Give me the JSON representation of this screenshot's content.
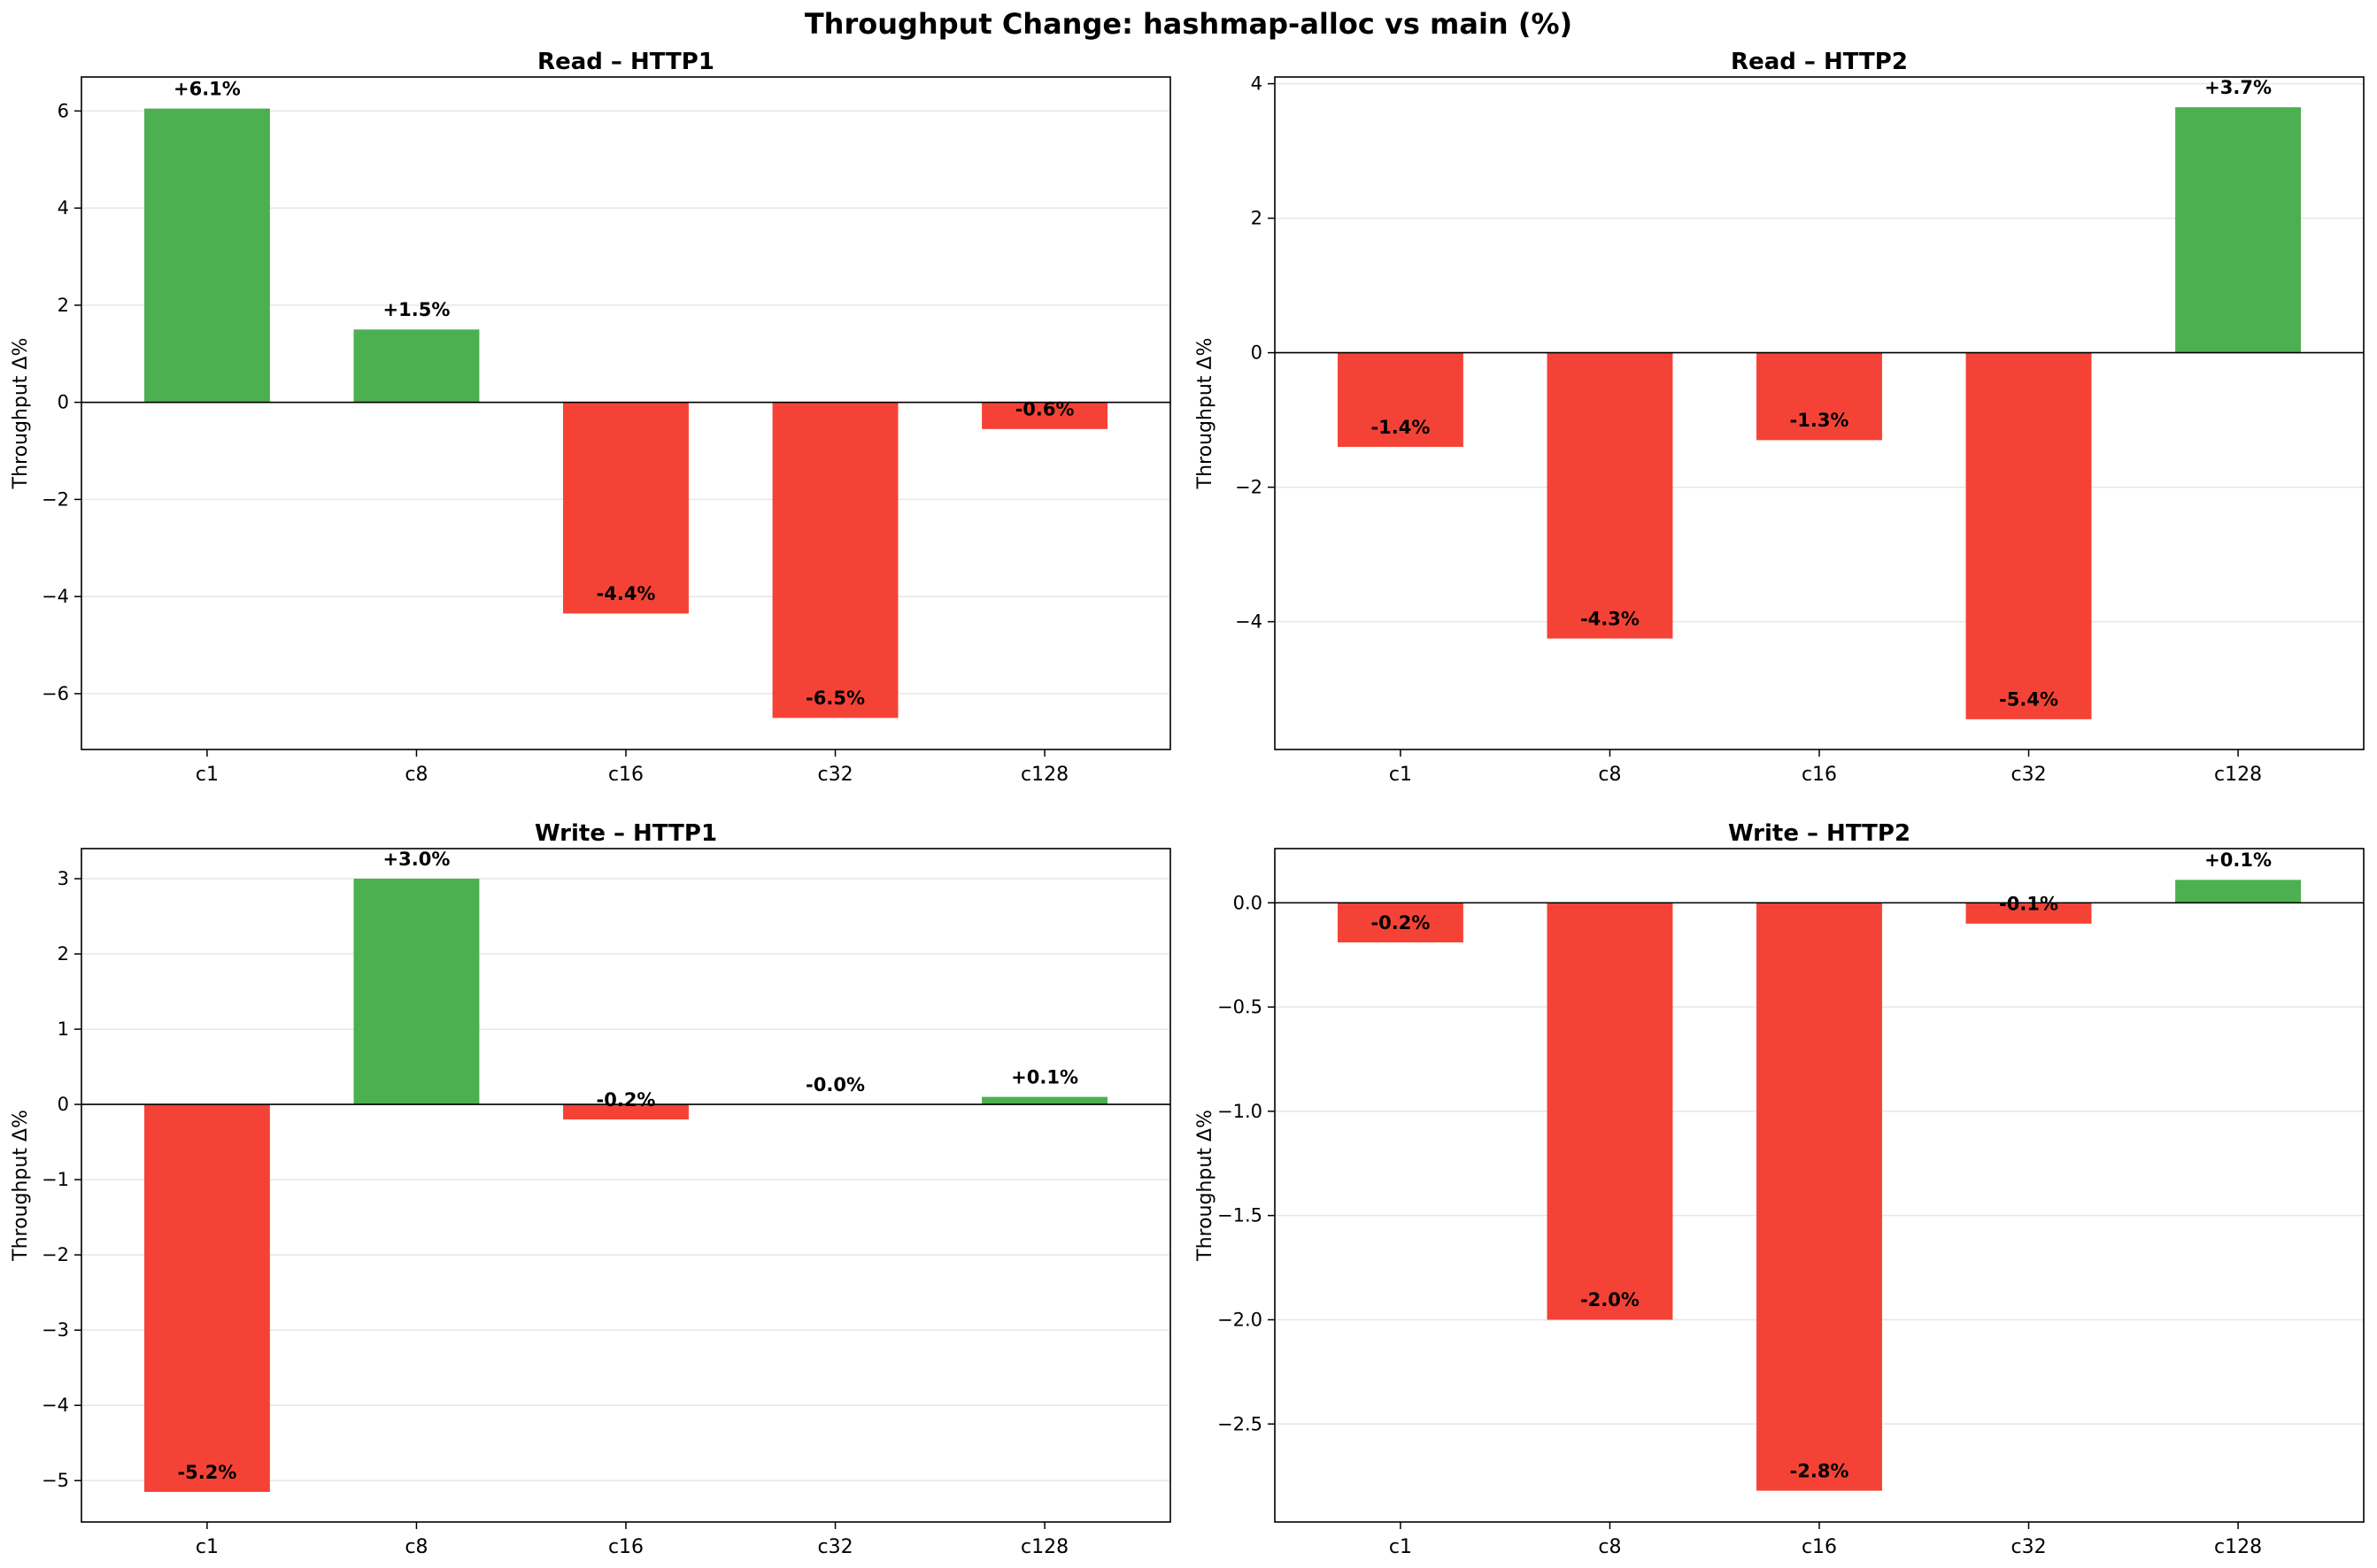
{
  "figure": {
    "title": "Throughput Change: hashmap-alloc vs main (%)"
  },
  "colors": {
    "positive": "#4caf50",
    "negative": "#f44336",
    "grid": "#e6e6e6",
    "axis": "#000000"
  },
  "chart_data": [
    {
      "type": "bar",
      "title": "Read – HTTP1",
      "xlabel": "",
      "ylabel": "Throughput Δ%",
      "categories": [
        "c1",
        "c8",
        "c16",
        "c32",
        "c128"
      ],
      "values": [
        6.05,
        1.5,
        -4.35,
        -6.5,
        -0.55
      ],
      "labels": [
        "+6.1%",
        "+1.5%",
        "-4.4%",
        "-6.5%",
        "-0.6%"
      ],
      "ylim": [
        -7.15,
        6.7
      ],
      "yticks": [
        -6,
        -4,
        -2,
        0,
        2,
        4,
        6
      ],
      "ytick_labels": [
        "−6",
        "−4",
        "−2",
        "0",
        "2",
        "4",
        "6"
      ],
      "grid": true
    },
    {
      "type": "bar",
      "title": "Read – HTTP2",
      "xlabel": "",
      "ylabel": "Throughput Δ%",
      "categories": [
        "c1",
        "c8",
        "c16",
        "c32",
        "c128"
      ],
      "values": [
        -1.4,
        -4.25,
        -1.3,
        -5.45,
        3.65
      ],
      "labels": [
        "-1.4%",
        "-4.3%",
        "-1.3%",
        "-5.4%",
        "+3.7%"
      ],
      "ylim": [
        -5.9,
        4.1
      ],
      "yticks": [
        -4,
        -2,
        0,
        2,
        4
      ],
      "ytick_labels": [
        "−4",
        "−2",
        "0",
        "2",
        "4"
      ],
      "grid": true
    },
    {
      "type": "bar",
      "title": "Write – HTTP1",
      "xlabel": "",
      "ylabel": "Throughput Δ%",
      "categories": [
        "c1",
        "c8",
        "c16",
        "c32",
        "c128"
      ],
      "values": [
        -5.15,
        3.0,
        -0.2,
        0.0,
        0.1
      ],
      "labels": [
        "-5.2%",
        "+3.0%",
        "-0.2%",
        "-0.0%",
        "+0.1%"
      ],
      "ylim": [
        -5.55,
        3.4
      ],
      "yticks": [
        -5,
        -4,
        -3,
        -2,
        -1,
        0,
        1,
        2,
        3
      ],
      "ytick_labels": [
        "−5",
        "−4",
        "−3",
        "−2",
        "−1",
        "0",
        "1",
        "2",
        "3"
      ],
      "grid": true
    },
    {
      "type": "bar",
      "title": "Write – HTTP2",
      "xlabel": "",
      "ylabel": "Throughput Δ%",
      "categories": [
        "c1",
        "c8",
        "c16",
        "c32",
        "c128"
      ],
      "values": [
        -0.19,
        -2.0,
        -2.82,
        -0.1,
        0.11
      ],
      "labels": [
        "-0.2%",
        "-2.0%",
        "-2.8%",
        "-0.1%",
        "+0.1%"
      ],
      "ylim": [
        -2.97,
        0.26
      ],
      "yticks": [
        -2.5,
        -2.0,
        -1.5,
        -1.0,
        -0.5,
        0.0
      ],
      "ytick_labels": [
        "−2.5",
        "−2.0",
        "−1.5",
        "−1.0",
        "−0.5",
        "0.0"
      ],
      "grid": true
    }
  ]
}
